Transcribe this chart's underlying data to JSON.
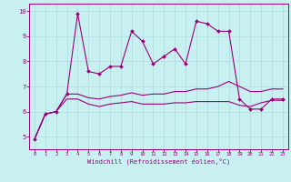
{
  "xlabel": "Windchill (Refroidissement éolien,°C)",
  "xlim": [
    -0.5,
    23.5
  ],
  "ylim": [
    4.5,
    10.3
  ],
  "yticks": [
    5,
    6,
    7,
    8,
    9,
    10
  ],
  "xticks": [
    0,
    1,
    2,
    3,
    4,
    5,
    6,
    7,
    8,
    9,
    10,
    11,
    12,
    13,
    14,
    15,
    16,
    17,
    18,
    19,
    20,
    21,
    22,
    23
  ],
  "background_color": "#c8f0f0",
  "line_color": "#990077",
  "grid_color": "#b0dede",
  "line1": [
    4.9,
    5.9,
    6.0,
    6.7,
    9.9,
    7.6,
    7.5,
    7.8,
    7.8,
    9.2,
    8.8,
    7.9,
    8.2,
    8.5,
    7.9,
    9.6,
    9.5,
    9.2,
    9.2,
    6.5,
    6.1,
    6.1,
    6.5,
    6.5
  ],
  "line2": [
    4.9,
    5.9,
    6.0,
    6.5,
    6.5,
    6.3,
    6.2,
    6.3,
    6.35,
    6.4,
    6.3,
    6.3,
    6.3,
    6.35,
    6.35,
    6.4,
    6.4,
    6.4,
    6.4,
    6.25,
    6.2,
    6.35,
    6.45,
    6.45
  ],
  "line3": [
    4.9,
    5.9,
    6.0,
    6.7,
    6.7,
    6.55,
    6.5,
    6.6,
    6.65,
    6.75,
    6.65,
    6.7,
    6.7,
    6.8,
    6.8,
    6.9,
    6.9,
    7.0,
    7.2,
    7.0,
    6.8,
    6.8,
    6.9,
    6.9
  ]
}
